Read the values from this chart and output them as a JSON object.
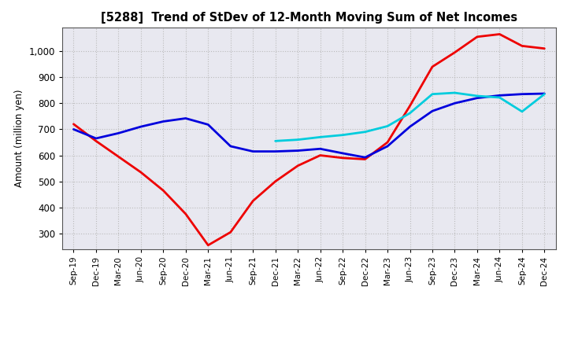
{
  "title": "[5288]  Trend of StDev of 12-Month Moving Sum of Net Incomes",
  "ylabel": "Amount (million yen)",
  "background_color": "#ffffff",
  "plot_bg_color": "#e8e8f0",
  "grid_color": "#bbbbbb",
  "x_labels": [
    "Sep-19",
    "Dec-19",
    "Mar-20",
    "Jun-20",
    "Sep-20",
    "Dec-20",
    "Mar-21",
    "Jun-21",
    "Sep-21",
    "Dec-21",
    "Mar-22",
    "Jun-22",
    "Sep-22",
    "Dec-22",
    "Mar-23",
    "Jun-23",
    "Sep-23",
    "Dec-23",
    "Mar-24",
    "Jun-24",
    "Sep-24",
    "Dec-24"
  ],
  "ylim": [
    240,
    1090
  ],
  "yticks": [
    300,
    400,
    500,
    600,
    700,
    800,
    900,
    1000
  ],
  "ytick_labels": [
    "300",
    "400",
    "500",
    "600",
    "700",
    "800",
    "900",
    "1,000"
  ],
  "series": {
    "3 Years": {
      "color": "#ee0000",
      "linewidth": 2.0,
      "data_x": [
        0,
        1,
        2,
        3,
        4,
        5,
        6,
        7,
        8,
        9,
        10,
        11,
        12,
        13,
        14,
        15,
        16,
        17,
        18,
        19,
        20,
        21
      ],
      "data_y": [
        720,
        655,
        595,
        535,
        465,
        375,
        255,
        305,
        425,
        500,
        560,
        600,
        590,
        585,
        650,
        790,
        940,
        995,
        1055,
        1065,
        1020,
        1010
      ]
    },
    "5 Years": {
      "color": "#0000dd",
      "linewidth": 2.0,
      "data_x": [
        0,
        1,
        2,
        3,
        4,
        5,
        6,
        7,
        8,
        9,
        10,
        11,
        12,
        13,
        14,
        15,
        16,
        17,
        18,
        19,
        20,
        21
      ],
      "data_y": [
        700,
        665,
        685,
        710,
        730,
        742,
        718,
        635,
        615,
        615,
        618,
        625,
        608,
        592,
        635,
        710,
        770,
        800,
        820,
        830,
        835,
        837
      ]
    },
    "7 Years": {
      "color": "#00ccdd",
      "linewidth": 2.0,
      "data_x": [
        9,
        10,
        11,
        12,
        13,
        14,
        15,
        16,
        17,
        18,
        19,
        20,
        21
      ],
      "data_y": [
        655,
        660,
        670,
        678,
        690,
        712,
        762,
        835,
        840,
        828,
        822,
        768,
        835
      ]
    },
    "10 Years": {
      "color": "#009900",
      "linewidth": 2.0,
      "data_x": [],
      "data_y": []
    }
  }
}
